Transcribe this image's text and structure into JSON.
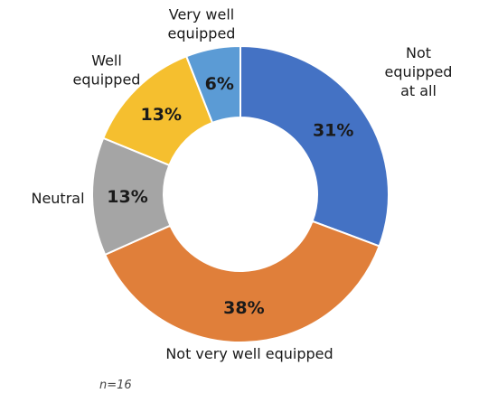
{
  "chart_data": {
    "type": "pie",
    "donut": true,
    "start_angle_deg": 0,
    "direction": "clockwise",
    "slices": [
      {
        "category": "Not equipped at all",
        "value": 31,
        "label": "31%",
        "color": "#4472C4",
        "label_lines": [
          "Not",
          "equipped",
          "at all"
        ]
      },
      {
        "category": "Not very well equipped",
        "value": 38,
        "label": "38%",
        "color": "#E07F3A",
        "label_lines": [
          "Not very well equipped"
        ]
      },
      {
        "category": "Neutral",
        "value": 13,
        "label": "13%",
        "color": "#A5A5A5",
        "label_lines": [
          "Neutral"
        ]
      },
      {
        "category": "Well equipped",
        "value": 13,
        "label": "13%",
        "color": "#F5BF2F",
        "label_lines": [
          "Well",
          "equipped"
        ]
      },
      {
        "category": "Very well equipped",
        "value": 6,
        "label": "6%",
        "color": "#5B9BD5",
        "label_lines": [
          "Very well",
          "equipped"
        ]
      }
    ],
    "legend": "none",
    "note": "n=16"
  }
}
